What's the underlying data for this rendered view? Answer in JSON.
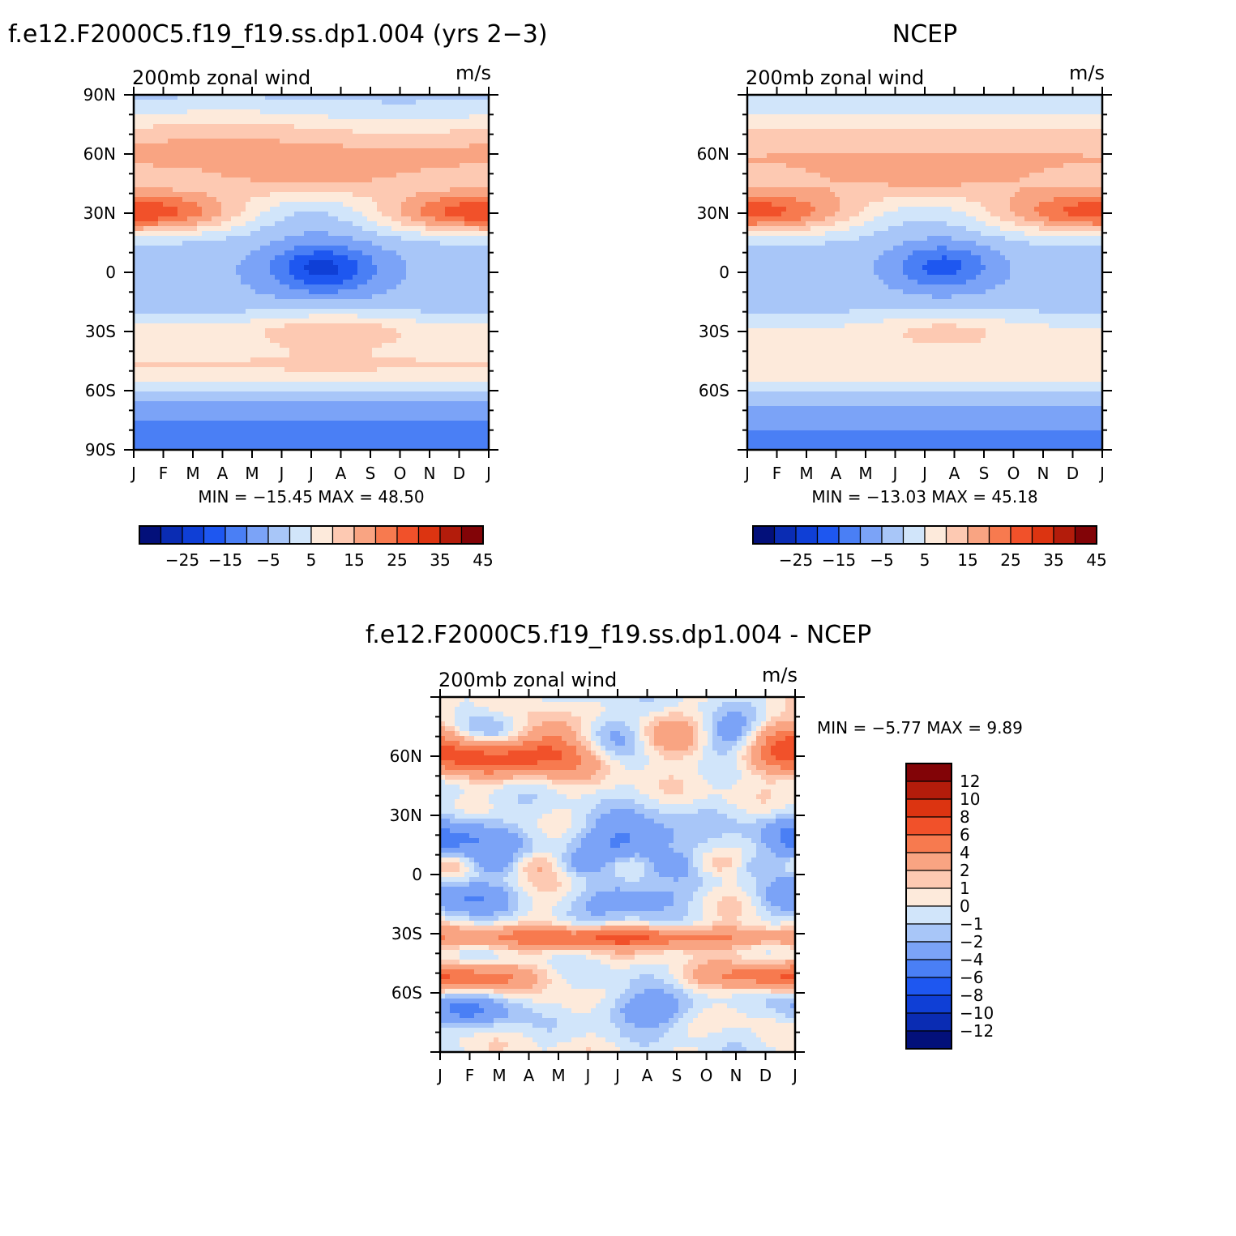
{
  "chart_data": [
    {
      "id": "model",
      "type": "heatmap",
      "title": "f.e12.F2000C5.f19_f19.ss.dp1.004 (yrs 2-3)",
      "left_string": "200mb zonal wind",
      "right_string": "m/s",
      "months": [
        "J",
        "F",
        "M",
        "A",
        "M",
        "J",
        "J",
        "A",
        "S",
        "O",
        "N",
        "D",
        "J"
      ],
      "lat_ticks": [
        "90N",
        "60N",
        "30N",
        "0",
        "30S",
        "60S",
        "90S"
      ],
      "ylim": [
        -90,
        90
      ],
      "stats": "MIN = -15.45 MAX =  48.50",
      "min": -15.45,
      "max": 48.5,
      "colorbar": {
        "levels": [
          -30,
          -25,
          -20,
          -15,
          -10,
          -5,
          0,
          5,
          10,
          15,
          20,
          25,
          30,
          35,
          40,
          45
        ],
        "labels": [
          "-25",
          "-15",
          "-5",
          "5",
          "15",
          "25",
          "35",
          "45"
        ]
      }
    },
    {
      "id": "obs",
      "type": "heatmap",
      "title": "NCEP",
      "left_string": "200mb zonal wind",
      "right_string": "m/s",
      "months": [
        "J",
        "F",
        "M",
        "A",
        "M",
        "J",
        "J",
        "A",
        "S",
        "O",
        "N",
        "D",
        "J"
      ],
      "lat_ticks": [
        "60N",
        "30N",
        "0",
        "30S",
        "60S"
      ],
      "ylim": [
        -90,
        90
      ],
      "stats": "MIN = -13.03 MAX =  45.18",
      "min": -13.03,
      "max": 45.18,
      "colorbar": {
        "levels": [
          -30,
          -25,
          -20,
          -15,
          -10,
          -5,
          0,
          5,
          10,
          15,
          20,
          25,
          30,
          35,
          40,
          45
        ],
        "labels": [
          "-25",
          "-15",
          "-5",
          "5",
          "15",
          "25",
          "35",
          "45"
        ]
      }
    },
    {
      "id": "diff",
      "type": "heatmap",
      "title": "f.e12.F2000C5.f19_f19.ss.dp1.004 - NCEP",
      "left_string": "200mb zonal wind",
      "right_string": "m/s",
      "months": [
        "J",
        "F",
        "M",
        "A",
        "M",
        "J",
        "J",
        "A",
        "S",
        "O",
        "N",
        "D",
        "J"
      ],
      "lat_ticks": [
        "60N",
        "30N",
        "0",
        "30S",
        "60S"
      ],
      "ylim": [
        -90,
        90
      ],
      "stats": "MIN =  -5.77 MAX =   9.89",
      "min": -5.77,
      "max": 9.89,
      "colorbar": {
        "levels": [
          -12,
          -10,
          -8,
          -6,
          -4,
          -2,
          -1,
          0,
          1,
          2,
          4,
          6,
          8,
          10,
          12
        ],
        "labels": [
          "12",
          "10",
          "8",
          "6",
          "4",
          "2",
          "1",
          "0",
          "-1",
          "-2",
          "-4",
          "-6",
          "-8",
          "-10",
          "-12"
        ]
      }
    }
  ],
  "palette": {
    "blue_red_16": [
      "#03107a",
      "#0a2cb3",
      "#0f3fd6",
      "#1e57f0",
      "#4a7ff5",
      "#7ba3f7",
      "#a8c6f8",
      "#d1e5fa",
      "#fdeadb",
      "#fdc9b2",
      "#f9a482",
      "#f77a4f",
      "#f1512a",
      "#dc3411",
      "#b31c0b",
      "#820407"
    ]
  }
}
